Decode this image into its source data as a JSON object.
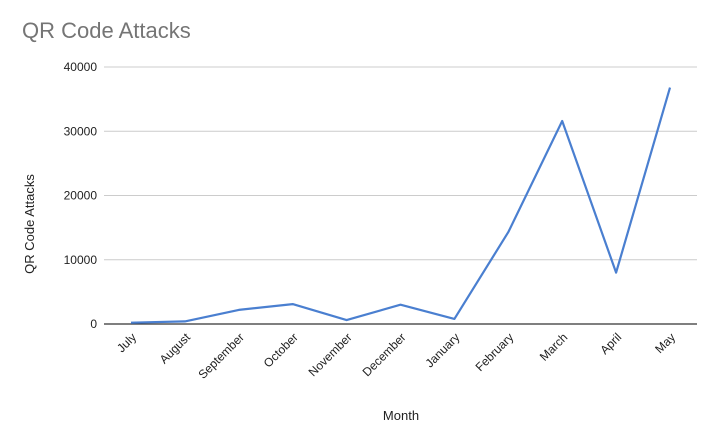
{
  "chart_data": {
    "type": "line",
    "title": "QR Code Attacks",
    "xlabel": "Month",
    "ylabel": "QR Code Attacks",
    "categories": [
      "July",
      "August",
      "September",
      "October",
      "November",
      "December",
      "January",
      "February",
      "March",
      "April",
      "May"
    ],
    "series": [
      {
        "values": [
          200,
          400,
          2200,
          3100,
          600,
          3000,
          800,
          14300,
          31600,
          8000,
          36800
        ]
      }
    ],
    "ylim": [
      0,
      40000
    ],
    "yticks": [
      0,
      10000,
      20000,
      30000,
      40000
    ],
    "grid": true,
    "legend": "none",
    "line_color": "#4a7fd0",
    "grid_color": "#cccccc",
    "axis_color": "#333333",
    "title_color": "#757575"
  }
}
